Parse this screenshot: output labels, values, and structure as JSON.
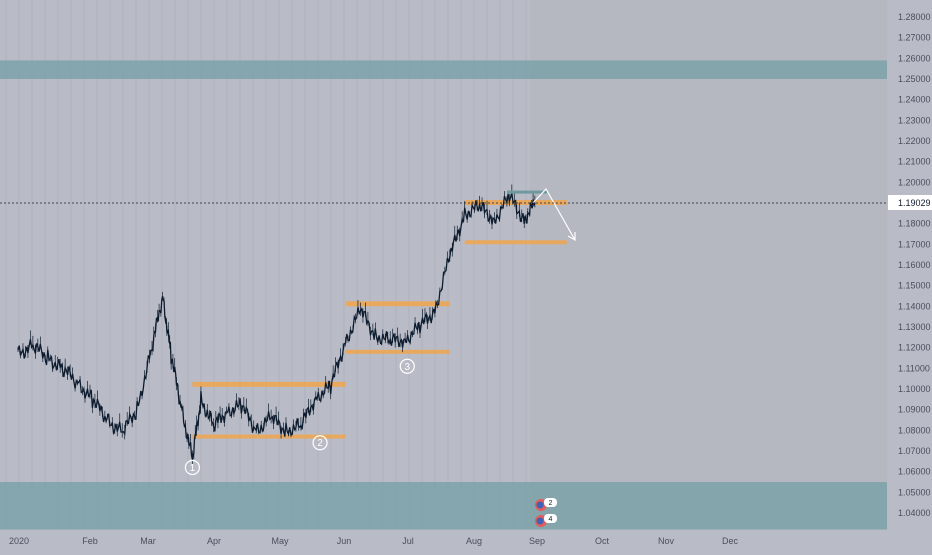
{
  "chart_data": {
    "type": "line",
    "symbol_note": "",
    "last_price_label": "1.19029",
    "y_ticks": [
      "1.28000",
      "1.27000",
      "1.26000",
      "1.25000",
      "1.24000",
      "1.23000",
      "1.22000",
      "1.21000",
      "1.20000",
      "1.19000",
      "1.18000",
      "1.17000",
      "1.16000",
      "1.15000",
      "1.14000",
      "1.13000",
      "1.12000",
      "1.11000",
      "1.10000",
      "1.09000",
      "1.08000",
      "1.07000",
      "1.06000",
      "1.05000",
      "1.04000"
    ],
    "x_ticks": [
      "2020",
      "Feb",
      "Mar",
      "Apr",
      "May",
      "Jun",
      "Jul",
      "Aug",
      "Sep",
      "Oct",
      "Nov",
      "Dec"
    ],
    "ylim": [
      1.032,
      1.288
    ],
    "series": [
      {
        "x": [
          "2020-01-01",
          "2020-01-08",
          "2020-01-15",
          "2020-01-22",
          "2020-01-29",
          "2020-02-05",
          "2020-02-12",
          "2020-02-19",
          "2020-02-26",
          "2020-03-04",
          "2020-03-09",
          "2020-03-13",
          "2020-03-18",
          "2020-03-23",
          "2020-03-27",
          "2020-04-02",
          "2020-04-08",
          "2020-04-15",
          "2020-04-22",
          "2020-04-29",
          "2020-05-06",
          "2020-05-13",
          "2020-05-20",
          "2020-05-27",
          "2020-06-03",
          "2020-06-10",
          "2020-06-17",
          "2020-06-24",
          "2020-07-01",
          "2020-07-08",
          "2020-07-15",
          "2020-07-22",
          "2020-07-29",
          "2020-08-05",
          "2020-08-12",
          "2020-08-19",
          "2020-08-26",
          "2020-08-31"
        ],
        "y": [
          1.117,
          1.121,
          1.115,
          1.11,
          1.103,
          1.095,
          1.085,
          1.079,
          1.09,
          1.12,
          1.145,
          1.116,
          1.09,
          1.066,
          1.095,
          1.082,
          1.089,
          1.092,
          1.08,
          1.086,
          1.08,
          1.082,
          1.096,
          1.101,
          1.123,
          1.138,
          1.126,
          1.123,
          1.124,
          1.13,
          1.138,
          1.164,
          1.185,
          1.188,
          1.182,
          1.193,
          1.182,
          1.19
        ]
      }
    ],
    "zones": [
      {
        "kind": "supply",
        "from": 1.25,
        "to": 1.259
      },
      {
        "kind": "demand",
        "from": 1.032,
        "to": 1.055
      }
    ],
    "ranges": [
      {
        "label": "1",
        "start": "2020-03-23",
        "end": "2020-06-03",
        "top": 1.102,
        "bottom": 1.077
      },
      {
        "label": "2",
        "start": "2020-03-23",
        "end": "2020-06-03",
        "top": 1.102,
        "bottom": 1.077
      },
      {
        "label": "3",
        "start": "2020-06-03",
        "end": "2020-07-22",
        "top": 1.141,
        "bottom": 1.118
      },
      {
        "label": "",
        "start": "2020-07-29",
        "end": "2020-09-15",
        "top": 1.19,
        "bottom": 1.171
      }
    ],
    "markers": [
      {
        "label": "1",
        "date": "2020-03-23",
        "price": 1.062
      },
      {
        "label": "2",
        "date": "2020-05-22",
        "price": 1.074
      },
      {
        "label": "3",
        "date": "2020-07-02",
        "price": 1.111
      }
    ],
    "event_badges": [
      "2",
      "4"
    ],
    "colors": {
      "background": "#b9bcc7",
      "future_background": "#b4b6c0",
      "zone": "#7fa3ab",
      "range": "#f0a64c",
      "price": "#0d1c2e",
      "axis_text": "#4a4f5c",
      "last_price_bg": "#ffffff"
    }
  }
}
